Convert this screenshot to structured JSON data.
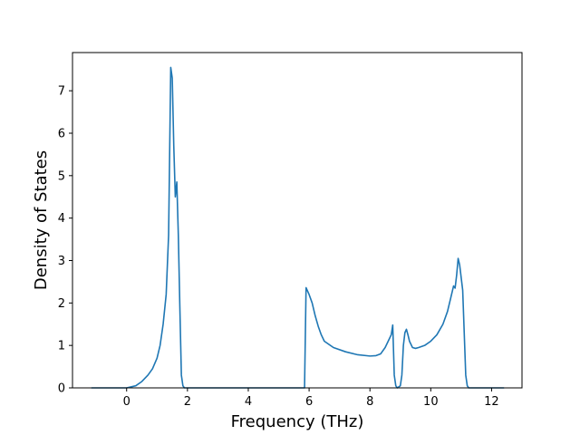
{
  "chart_data": {
    "type": "line",
    "title": "",
    "xlabel": "Frequency (THz)",
    "ylabel": "Density of States",
    "xlim": [
      -1.78,
      13.0
    ],
    "ylim": [
      0,
      7.9
    ],
    "xticks": [
      0,
      2,
      4,
      6,
      8,
      10,
      12
    ],
    "yticks": [
      0,
      1,
      2,
      3,
      4,
      5,
      6,
      7
    ],
    "grid": false,
    "legend": "none",
    "series": [
      {
        "color": "#1f77b4",
        "x": [
          -1.15,
          0.0,
          0.3,
          0.5,
          0.7,
          0.85,
          1.0,
          1.1,
          1.2,
          1.3,
          1.38,
          1.45,
          1.5,
          1.55,
          1.6,
          1.65,
          1.7,
          1.75,
          1.8,
          1.85,
          1.9,
          2.0,
          5.0,
          5.85,
          5.9,
          6.0,
          6.1,
          6.2,
          6.3,
          6.4,
          6.5,
          6.8,
          7.2,
          7.6,
          8.0,
          8.2,
          8.35,
          8.5,
          8.6,
          8.7,
          8.75,
          8.8,
          8.85,
          8.9,
          9.0,
          9.05,
          9.1,
          9.15,
          9.2,
          9.25,
          9.3,
          9.4,
          9.5,
          9.6,
          9.8,
          10.0,
          10.2,
          10.4,
          10.55,
          10.65,
          10.75,
          10.8,
          10.85,
          10.9,
          10.95,
          11.0,
          11.05,
          11.1,
          11.15,
          11.2,
          11.25,
          11.3,
          11.35,
          11.5,
          12.0,
          12.4
        ],
        "y": [
          0,
          0.0,
          0.05,
          0.15,
          0.3,
          0.45,
          0.7,
          1.0,
          1.5,
          2.2,
          3.6,
          7.55,
          7.3,
          5.7,
          4.5,
          4.85,
          3.6,
          1.9,
          0.3,
          0.05,
          0.0,
          0.0,
          0.0,
          0.0,
          2.36,
          2.2,
          2.0,
          1.7,
          1.45,
          1.25,
          1.1,
          0.95,
          0.85,
          0.78,
          0.75,
          0.76,
          0.8,
          0.95,
          1.1,
          1.25,
          1.48,
          0.3,
          0.05,
          0.0,
          0.05,
          0.3,
          1.0,
          1.3,
          1.38,
          1.25,
          1.1,
          0.95,
          0.93,
          0.95,
          1.0,
          1.1,
          1.25,
          1.5,
          1.8,
          2.1,
          2.4,
          2.35,
          2.65,
          3.05,
          2.9,
          2.6,
          2.3,
          1.3,
          0.3,
          0.05,
          0.0,
          0.0,
          0.0,
          0.0,
          0.0,
          0.0
        ]
      }
    ]
  }
}
